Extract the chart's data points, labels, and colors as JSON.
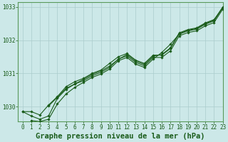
{
  "bg_color": "#cce8e8",
  "grid_color": "#aacccc",
  "line_color": "#1a5c1a",
  "title": "Graphe pression niveau de la mer (hPa)",
  "xlim": [
    -0.5,
    23
  ],
  "ylim": [
    1029.55,
    1033.15
  ],
  "yticks": [
    1030,
    1031,
    1032,
    1033
  ],
  "xticks": [
    0,
    1,
    2,
    3,
    4,
    5,
    6,
    7,
    8,
    9,
    10,
    11,
    12,
    13,
    14,
    15,
    16,
    17,
    18,
    19,
    20,
    21,
    22,
    23
  ],
  "series": [
    [
      1029.85,
      1029.85,
      1029.75,
      1030.05,
      1030.3,
      1030.6,
      1030.75,
      1030.85,
      1031.0,
      1031.1,
      1031.3,
      1031.5,
      1031.6,
      1031.4,
      1031.3,
      1031.55,
      1031.55,
      1031.75,
      1032.2,
      1032.3,
      1032.35,
      1032.5,
      1032.6,
      1033.0
    ],
    [
      1029.85,
      1029.72,
      1029.62,
      1029.72,
      1030.25,
      1030.52,
      1030.68,
      1030.78,
      1030.93,
      1031.03,
      1031.18,
      1031.43,
      1031.53,
      1031.33,
      1031.23,
      1031.48,
      1031.48,
      1031.68,
      1032.13,
      1032.23,
      1032.28,
      1032.43,
      1032.53,
      1032.93
    ],
    [
      null,
      1029.58,
      1029.55,
      1029.62,
      1030.08,
      1030.38,
      1030.58,
      1030.73,
      1030.88,
      1030.98,
      1031.13,
      1031.38,
      1031.48,
      1031.28,
      1031.18,
      1031.43,
      1031.63,
      1031.88,
      1032.18,
      1032.28,
      1032.33,
      1032.48,
      1032.58,
      1032.98
    ],
    [
      null,
      null,
      null,
      1030.02,
      1030.28,
      1030.55,
      1030.68,
      1030.82,
      1030.97,
      1031.07,
      1031.22,
      1031.42,
      1031.57,
      1031.37,
      1031.27,
      1031.52,
      1031.57,
      1031.77,
      1032.22,
      1032.32,
      1032.37,
      1032.52,
      1032.62,
      1032.97
    ]
  ],
  "marker": "D",
  "markersize": 1.8,
  "linewidth": 0.8,
  "title_fontsize": 7.5,
  "tick_fontsize": 5.5
}
